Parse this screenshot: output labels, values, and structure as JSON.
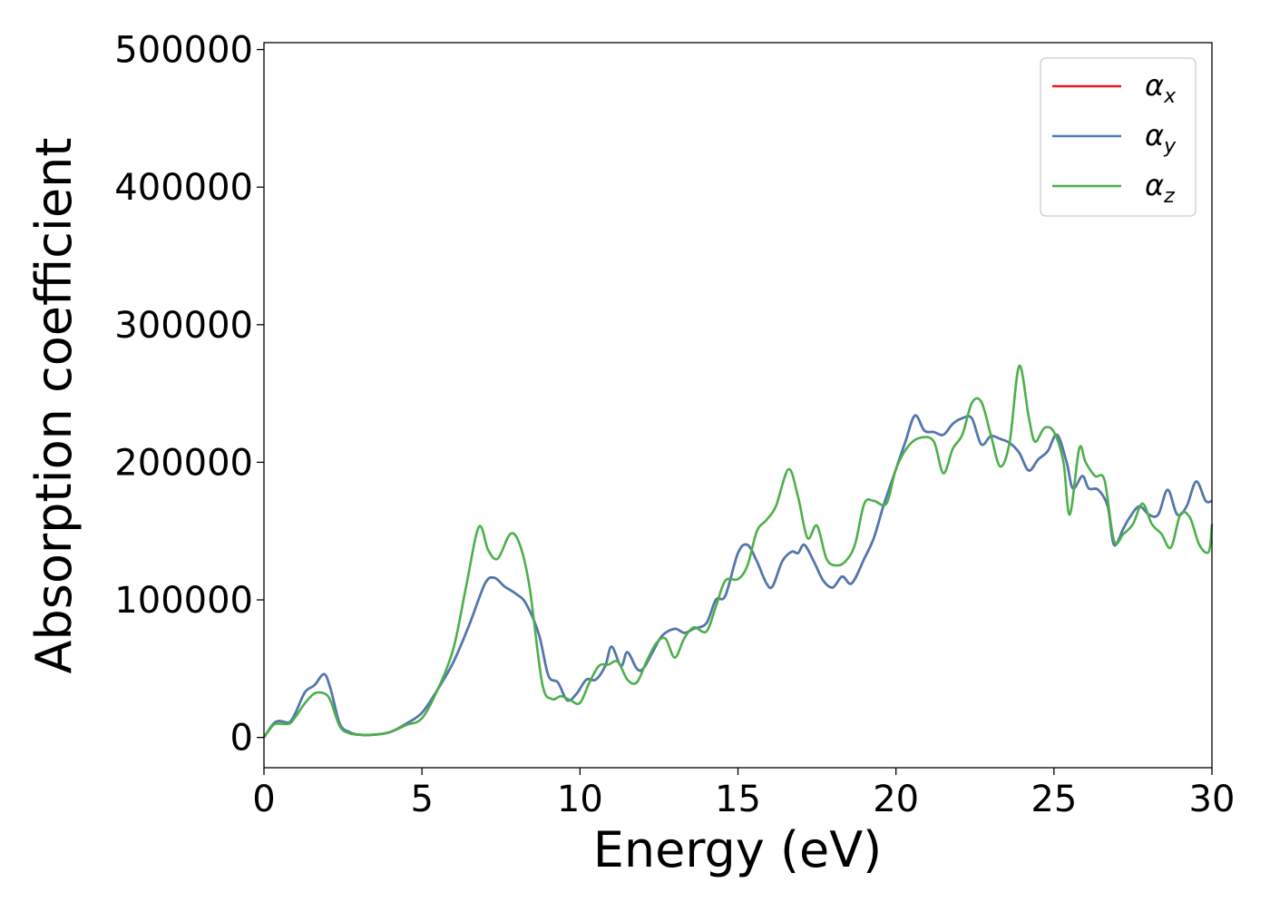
{
  "chart_data": {
    "type": "line",
    "title": "",
    "xlabel": "Energy (eV)",
    "ylabel": "Absorption coefficient",
    "xlim": [
      0,
      30
    ],
    "ylim": [
      -22000,
      505000
    ],
    "xticks": [
      0,
      5,
      10,
      15,
      20,
      25,
      30
    ],
    "yticks": [
      0,
      100000,
      200000,
      300000,
      400000,
      500000
    ],
    "grid": false,
    "legend_position": "top-right",
    "series": [
      {
        "name": "α",
        "subscript": "x",
        "color": "#e41a1c",
        "x": [
          0,
          0.3,
          0.5,
          0.8,
          1.0,
          1.3,
          1.6,
          1.9,
          2.1,
          2.4,
          2.7,
          3.0,
          3.5,
          4.0,
          4.5,
          5.0,
          5.5,
          6.0,
          6.5,
          7.0,
          7.3,
          7.6,
          8.0,
          8.3,
          8.7,
          9.0,
          9.3,
          9.6,
          9.9,
          10.2,
          10.5,
          10.8,
          11.0,
          11.3,
          11.5,
          11.8,
          12.0,
          12.3,
          12.6,
          13.0,
          13.3,
          13.6,
          14.0,
          14.3,
          14.6,
          15.0,
          15.3,
          15.6,
          15.9,
          16.1,
          16.4,
          16.7,
          16.9,
          17.1,
          17.4,
          17.7,
          18.0,
          18.3,
          18.6,
          19.0,
          19.3,
          19.6,
          20.0,
          20.3,
          20.6,
          20.9,
          21.2,
          21.5,
          21.8,
          22.1,
          22.4,
          22.7,
          23.0,
          23.3,
          23.6,
          23.9,
          24.2,
          24.5,
          24.8,
          25.1,
          25.4,
          25.6,
          25.9,
          26.1,
          26.4,
          26.7,
          26.9,
          27.2,
          27.4,
          27.7,
          28.0,
          28.3,
          28.6,
          28.9,
          29.2,
          29.5,
          29.8,
          30.0
        ],
        "y": [
          0,
          10000,
          12000,
          11000,
          18000,
          33000,
          38000,
          46000,
          36000,
          10000,
          4000,
          2000,
          2000,
          4000,
          10000,
          18000,
          35000,
          55000,
          82000,
          112000,
          116000,
          110000,
          104000,
          97000,
          75000,
          45000,
          40000,
          27000,
          32000,
          42000,
          42000,
          52000,
          66000,
          52000,
          62000,
          50000,
          50000,
          62000,
          74000,
          79000,
          76000,
          79000,
          83000,
          100000,
          103000,
          134000,
          140000,
          128000,
          112000,
          110000,
          128000,
          135000,
          134000,
          140000,
          128000,
          114000,
          109000,
          117000,
          112000,
          130000,
          145000,
          168000,
          195000,
          215000,
          234000,
          223000,
          222000,
          220000,
          228000,
          232000,
          232000,
          213000,
          219000,
          217000,
          214000,
          207000,
          194000,
          202000,
          208000,
          220000,
          200000,
          181000,
          190000,
          181000,
          180000,
          168000,
          140000,
          152000,
          160000,
          168000,
          162000,
          162000,
          180000,
          162000,
          168000,
          186000,
          172000,
          172000
        ]
      },
      {
        "name": "α",
        "subscript": "y",
        "color": "#4a7ab5",
        "x": [
          0,
          0.3,
          0.5,
          0.8,
          1.0,
          1.3,
          1.6,
          1.9,
          2.1,
          2.4,
          2.7,
          3.0,
          3.5,
          4.0,
          4.5,
          5.0,
          5.5,
          6.0,
          6.5,
          7.0,
          7.3,
          7.6,
          8.0,
          8.3,
          8.7,
          9.0,
          9.3,
          9.6,
          9.9,
          10.2,
          10.5,
          10.8,
          11.0,
          11.3,
          11.5,
          11.8,
          12.0,
          12.3,
          12.6,
          13.0,
          13.3,
          13.6,
          14.0,
          14.3,
          14.6,
          15.0,
          15.3,
          15.6,
          15.9,
          16.1,
          16.4,
          16.7,
          16.9,
          17.1,
          17.4,
          17.7,
          18.0,
          18.3,
          18.6,
          19.0,
          19.3,
          19.6,
          20.0,
          20.3,
          20.6,
          20.9,
          21.2,
          21.5,
          21.8,
          22.1,
          22.4,
          22.7,
          23.0,
          23.3,
          23.6,
          23.9,
          24.2,
          24.5,
          24.8,
          25.1,
          25.4,
          25.6,
          25.9,
          26.1,
          26.4,
          26.7,
          26.9,
          27.2,
          27.4,
          27.7,
          28.0,
          28.3,
          28.6,
          28.9,
          29.2,
          29.5,
          29.8,
          30.0
        ],
        "y": [
          0,
          10000,
          12000,
          11000,
          18000,
          33000,
          38000,
          46000,
          36000,
          10000,
          4000,
          2000,
          2000,
          4000,
          10000,
          18000,
          35000,
          55000,
          82000,
          112000,
          116000,
          110000,
          104000,
          97000,
          75000,
          45000,
          40000,
          27000,
          32000,
          42000,
          42000,
          52000,
          66000,
          52000,
          62000,
          50000,
          50000,
          62000,
          74000,
          79000,
          76000,
          79000,
          83000,
          100000,
          103000,
          134000,
          140000,
          128000,
          112000,
          110000,
          128000,
          135000,
          134000,
          140000,
          128000,
          114000,
          109000,
          117000,
          112000,
          130000,
          145000,
          168000,
          195000,
          215000,
          234000,
          223000,
          222000,
          220000,
          228000,
          232000,
          232000,
          213000,
          219000,
          217000,
          214000,
          207000,
          194000,
          202000,
          208000,
          220000,
          200000,
          181000,
          190000,
          181000,
          180000,
          168000,
          140000,
          152000,
          160000,
          168000,
          162000,
          162000,
          180000,
          162000,
          168000,
          186000,
          172000,
          172000
        ]
      },
      {
        "name": "α",
        "subscript": "z",
        "color": "#4daf4a",
        "x": [
          0,
          0.3,
          0.5,
          0.8,
          1.0,
          1.3,
          1.6,
          1.9,
          2.1,
          2.4,
          2.7,
          3.0,
          3.5,
          4.0,
          4.5,
          5.0,
          5.5,
          6.0,
          6.4,
          6.8,
          7.1,
          7.4,
          7.8,
          8.1,
          8.4,
          8.8,
          9.1,
          9.4,
          9.7,
          10.0,
          10.3,
          10.6,
          10.9,
          11.2,
          11.5,
          11.8,
          12.1,
          12.4,
          12.7,
          13.0,
          13.3,
          13.6,
          14.0,
          14.3,
          14.6,
          15.0,
          15.3,
          15.6,
          15.9,
          16.2,
          16.6,
          16.9,
          17.2,
          17.5,
          17.8,
          18.1,
          18.4,
          18.7,
          19.0,
          19.3,
          19.7,
          20.0,
          20.4,
          20.8,
          21.2,
          21.5,
          21.8,
          22.1,
          22.4,
          22.7,
          23.0,
          23.3,
          23.6,
          23.9,
          24.2,
          24.4,
          24.7,
          25.0,
          25.3,
          25.5,
          25.8,
          26.0,
          26.3,
          26.6,
          26.9,
          27.2,
          27.5,
          27.8,
          28.1,
          28.4,
          28.7,
          29.0,
          29.3,
          29.6,
          29.9,
          30.0
        ],
        "y": [
          0,
          9000,
          10000,
          10000,
          15000,
          25000,
          32000,
          32000,
          27000,
          8000,
          3000,
          2000,
          2000,
          4000,
          9000,
          14000,
          35000,
          65000,
          110000,
          153000,
          136000,
          130000,
          148000,
          140000,
          110000,
          40000,
          28000,
          30000,
          27000,
          25000,
          40000,
          52000,
          53000,
          55000,
          42000,
          40000,
          55000,
          68000,
          72000,
          58000,
          72000,
          80000,
          77000,
          95000,
          114000,
          115000,
          125000,
          150000,
          158000,
          168000,
          195000,
          175000,
          145000,
          154000,
          130000,
          125000,
          128000,
          140000,
          170000,
          172000,
          170000,
          195000,
          212000,
          218000,
          215000,
          192000,
          210000,
          220000,
          243000,
          244000,
          220000,
          197000,
          215000,
          270000,
          233000,
          215000,
          225000,
          222000,
          200000,
          162000,
          210000,
          200000,
          190000,
          187000,
          143000,
          148000,
          155000,
          170000,
          155000,
          148000,
          138000,
          162000,
          160000,
          140000,
          135000,
          155000
        ]
      }
    ]
  }
}
